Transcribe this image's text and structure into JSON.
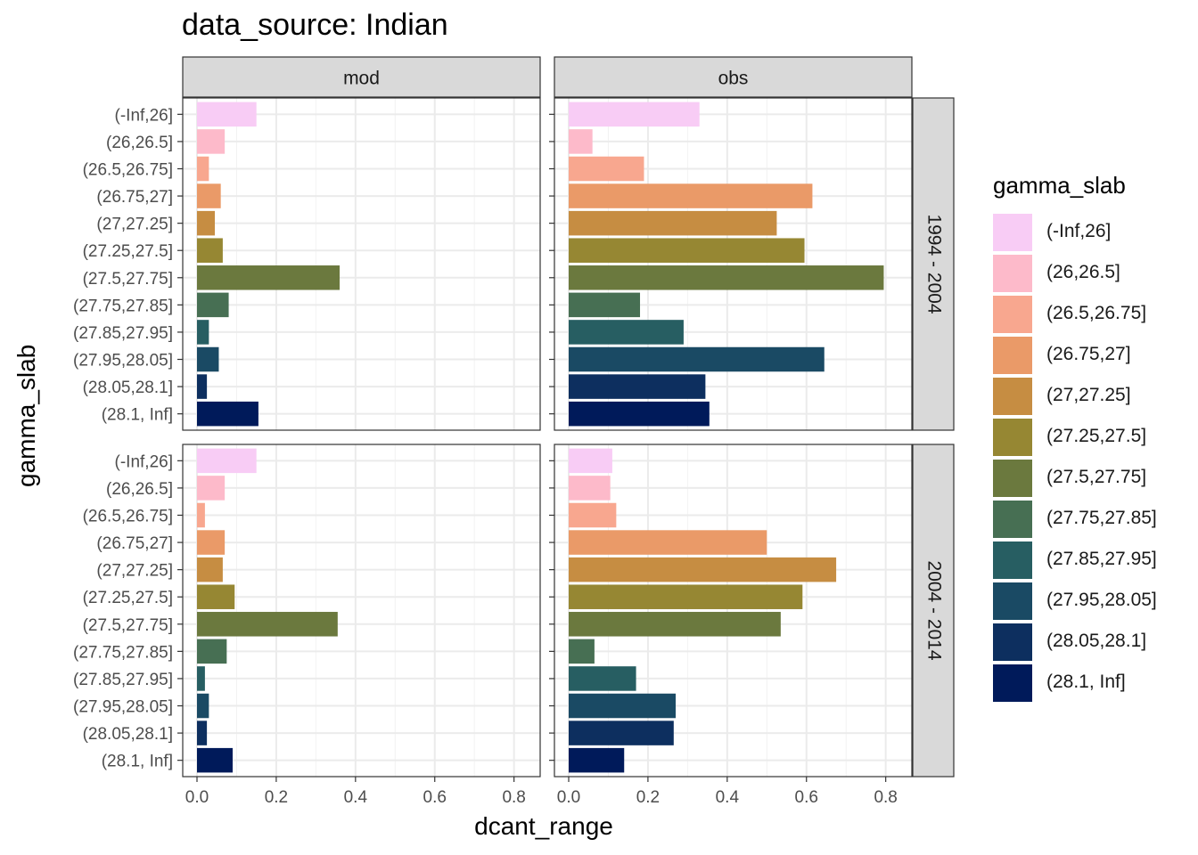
{
  "title": "data_source: Indian",
  "chart_data": {
    "type": "bar",
    "orientation": "horizontal",
    "facets": {
      "columns": [
        "mod",
        "obs"
      ],
      "rows": [
        "1994 - 2004",
        "2004 - 2014"
      ]
    },
    "categories": [
      "(-Inf,26]",
      "(26,26.5]",
      "(26.5,26.75]",
      "(26.75,27]",
      "(27,27.25]",
      "(27.25,27.5]",
      "(27.5,27.75]",
      "(27.75,27.85]",
      "(27.85,27.95]",
      "(27.95,28.05]",
      "(28.05,28.1]",
      "(28.1, Inf]"
    ],
    "colors": [
      "#F8CCF5",
      "#FDBACA",
      "#F8A78F",
      "#EA9A68",
      "#C68D42",
      "#968733",
      "#6B793E",
      "#476F53",
      "#275E62",
      "#1A4A64",
      "#0D2F5F",
      "#001A5A"
    ],
    "panels": [
      {
        "row": "1994 - 2004",
        "column": "mod",
        "values": [
          0.15,
          0.07,
          0.03,
          0.06,
          0.045,
          0.065,
          0.36,
          0.08,
          0.03,
          0.055,
          0.025,
          0.155
        ]
      },
      {
        "row": "1994 - 2004",
        "column": "obs",
        "values": [
          0.33,
          0.06,
          0.19,
          0.615,
          0.525,
          0.595,
          0.795,
          0.18,
          0.29,
          0.645,
          0.345,
          0.355
        ]
      },
      {
        "row": "2004 - 2014",
        "column": "mod",
        "values": [
          0.15,
          0.07,
          0.02,
          0.07,
          0.065,
          0.095,
          0.355,
          0.075,
          0.02,
          0.03,
          0.025,
          0.09
        ]
      },
      {
        "row": "2004 - 2014",
        "column": "obs",
        "values": [
          0.11,
          0.105,
          0.12,
          0.5,
          0.675,
          0.59,
          0.535,
          0.065,
          0.17,
          0.27,
          0.265,
          0.14
        ]
      }
    ],
    "xlabel": "dcant_range",
    "ylabel": "gamma_slab",
    "xlim": [
      0,
      0.83
    ],
    "xticks": [
      0,
      0.2,
      0.4,
      0.6,
      0.8
    ],
    "xtick_labels": [
      "0.0",
      "0.2",
      "0.4",
      "0.6",
      "0.8"
    ],
    "grid": true,
    "legend": {
      "title": "gamma_slab",
      "position": "right"
    }
  }
}
